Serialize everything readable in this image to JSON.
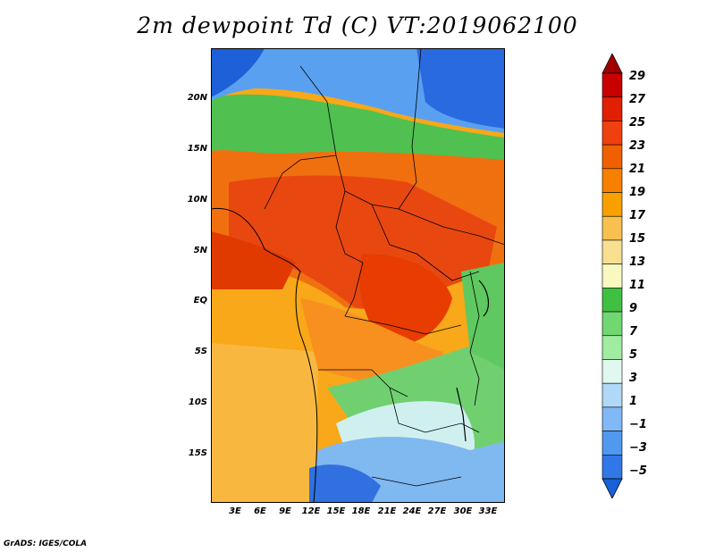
{
  "title": "2m dewpoint Td (C) VT:2019062100",
  "credit": "GrADS: IGES/COLA",
  "map": {
    "lat_labels": [
      "20N",
      "15N",
      "10N",
      "5N",
      "EQ",
      "5S",
      "10S",
      "15S"
    ],
    "lon_labels": [
      "3E",
      "6E",
      "9E",
      "12E",
      "15E",
      "18E",
      "21E",
      "24E",
      "27E",
      "30E",
      "33E"
    ]
  },
  "colorbar": {
    "labels": [
      "29",
      "27",
      "25",
      "23",
      "21",
      "19",
      "17",
      "15",
      "13",
      "11",
      "9",
      "7",
      "5",
      "3",
      "1",
      "−1",
      "−3",
      "−5"
    ],
    "colors": [
      "#a00000",
      "#c80000",
      "#e02000",
      "#f04010",
      "#f06000",
      "#f88000",
      "#f8a000",
      "#f8c050",
      "#f8e090",
      "#f8f8c0",
      "#40c040",
      "#70d870",
      "#a0eca0",
      "#e0f8f0",
      "#b0d8f8",
      "#80b8f8",
      "#5098f0",
      "#3078e8",
      "#1860d8"
    ]
  }
}
